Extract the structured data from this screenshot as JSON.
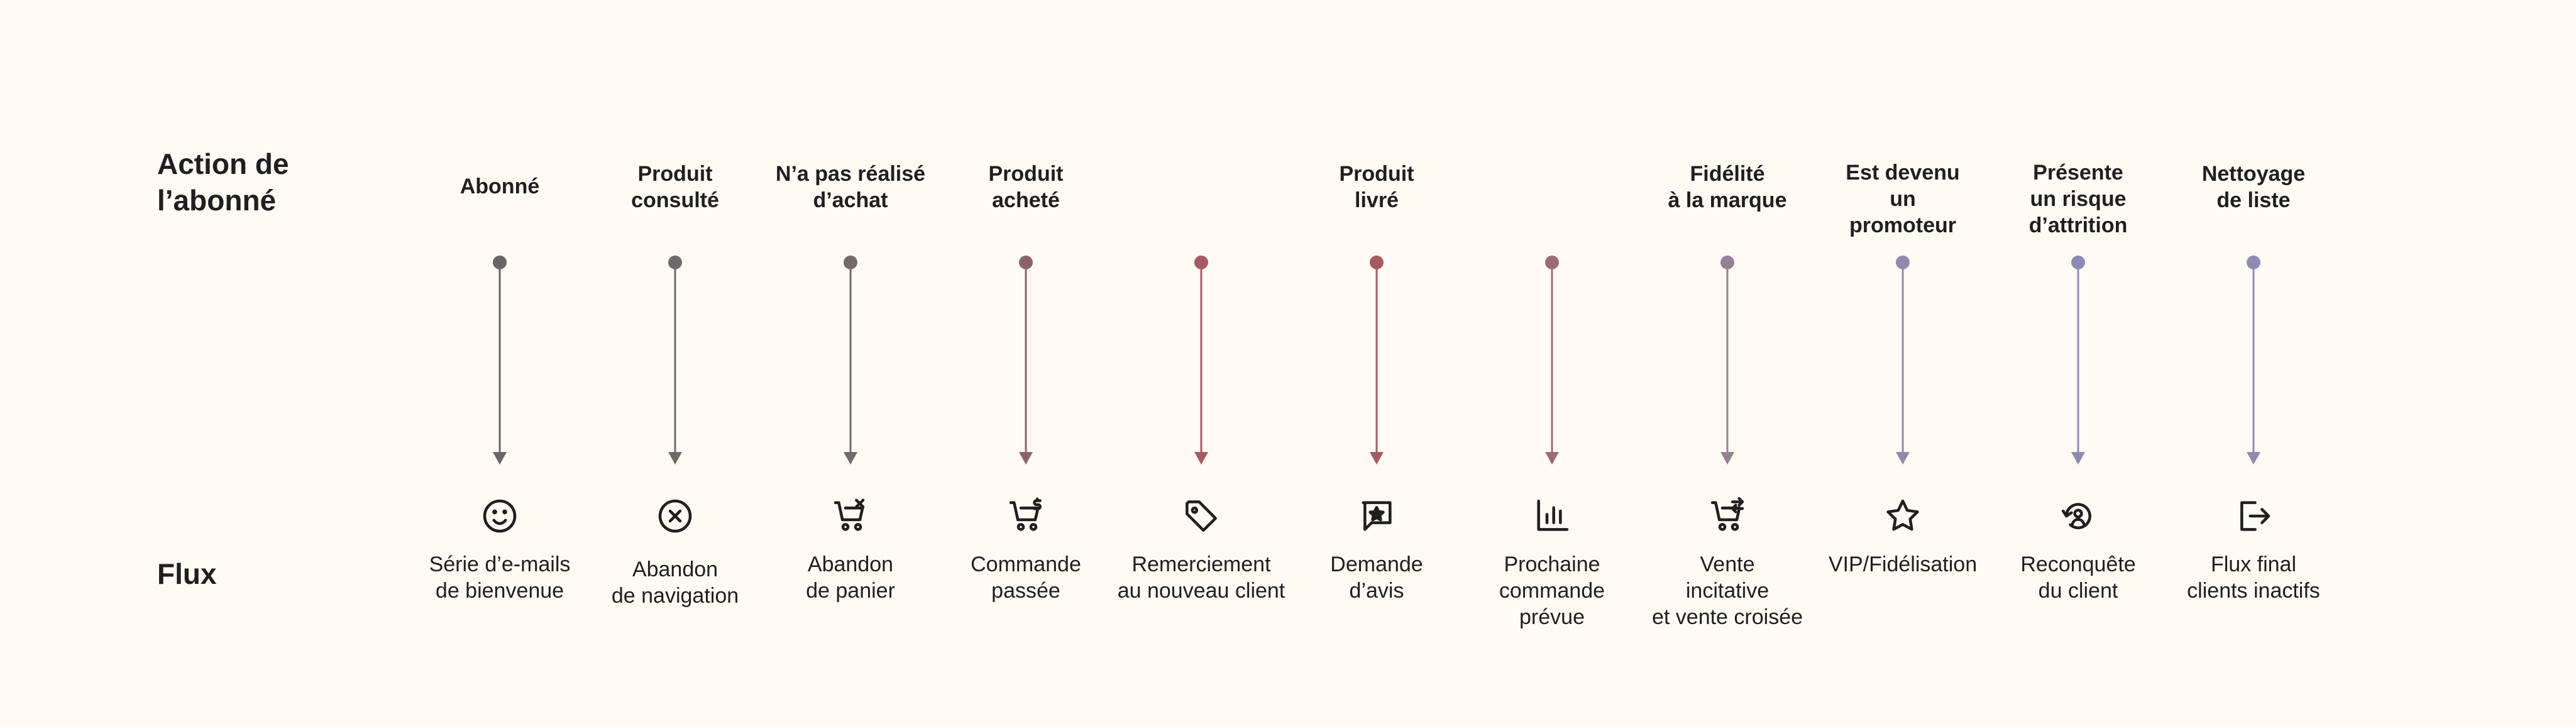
{
  "row_labels": {
    "action": "Action de l’abonné",
    "flux": "Flux"
  },
  "colors": {
    "background": "#fffaf4",
    "start_gray": "#6a6a6a",
    "mid_red": "#a85860",
    "end_purple": "#8f8ab3"
  },
  "steps": [
    {
      "action": "Abonné",
      "flux": "Série d’e-mails\nde bienvenue",
      "icon": "smiley-icon",
      "color": "#666666"
    },
    {
      "action": "Produit\nconsulté",
      "flux": "Abandon\nde navigation",
      "icon": "close-circle-icon",
      "color": "#6d6a6a"
    },
    {
      "action": "N’a pas réalisé\nd’achat",
      "flux": "Abandon\nde panier",
      "icon": "cart-remove-icon",
      "color": "#74696b"
    },
    {
      "action": "Produit\nacheté",
      "flux": "Commande\npassée",
      "icon": "cart-dollar-icon",
      "color": "#8c6467"
    },
    {
      "action": "",
      "flux": "Remerciement\nau nouveau client",
      "icon": "tag-icon",
      "color": "#a55a61"
    },
    {
      "action": "Produit\nlivré",
      "flux": "Demande\nd’avis",
      "icon": "review-star-icon",
      "color": "#a55a60"
    },
    {
      "action": "",
      "flux": "Prochaine\ncommande\nprévue",
      "icon": "bar-chart-icon",
      "color": "#9c6b74"
    },
    {
      "action": "Fidélité\nà la marque",
      "flux": "Vente\nincitative\net vente croisée",
      "icon": "cart-swap-icon",
      "color": "#958092"
    },
    {
      "action": "Est devenu\nun\npromoteur",
      "flux": "VIP/Fidélisation",
      "icon": "star-icon",
      "color": "#918aab"
    },
    {
      "action": "Présente\nun risque\nd’attrition",
      "flux": "Reconquête\ndu client",
      "icon": "user-refresh-icon",
      "color": "#8f8ab3"
    },
    {
      "action": "Nettoyage\nde liste",
      "flux": "Flux final\nclients inactifs",
      "icon": "logout-icon",
      "color": "#8f8ab3"
    }
  ]
}
